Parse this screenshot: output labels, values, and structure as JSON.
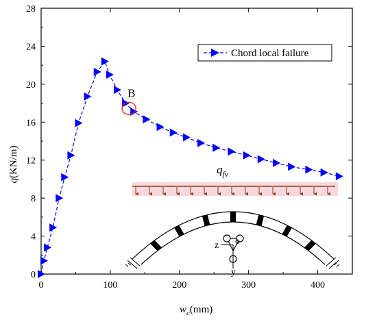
{
  "chart_data": {
    "type": "line",
    "xlabel": {
      "main": "w",
      "sub": "c",
      "unit": "(mm)"
    },
    "ylabel": {
      "main": "q",
      "unit": "(KN/m)"
    },
    "xlim": [
      0,
      450
    ],
    "ylim": [
      0,
      28
    ],
    "xticks": [
      0,
      100,
      200,
      300,
      400
    ],
    "yticks": [
      0,
      4,
      8,
      12,
      16,
      20,
      24,
      28
    ],
    "legend_position": "top-right",
    "grid": false,
    "series": [
      {
        "name": "Chord local failure",
        "color": "#0000ff",
        "marker": "right-triangle",
        "line_style": "dashed",
        "x": [
          0,
          4,
          9,
          17,
          26,
          34,
          43,
          54,
          67,
          81,
          92,
          99,
          110,
          122,
          134,
          152,
          172,
          191,
          210,
          231,
          253,
          275,
          297,
          318,
          340,
          362,
          387,
          409,
          431
        ],
        "y": [
          0,
          1.4,
          2.8,
          4.9,
          8.0,
          10.2,
          12.5,
          15.9,
          18.7,
          21.3,
          22.4,
          21.0,
          19.4,
          18.0,
          17.1,
          16.3,
          15.5,
          14.9,
          14.4,
          13.8,
          13.3,
          12.9,
          12.5,
          12.1,
          11.7,
          11.3,
          11.0,
          10.7,
          10.3
        ]
      }
    ],
    "annotations": {
      "point_label": "B",
      "point_x": 130,
      "point_y": 17.3,
      "load_label_main": "q",
      "load_label_sub": "fv",
      "axis_label_z": "z",
      "axis_label_o": "o",
      "axis_label_y": "y"
    }
  }
}
